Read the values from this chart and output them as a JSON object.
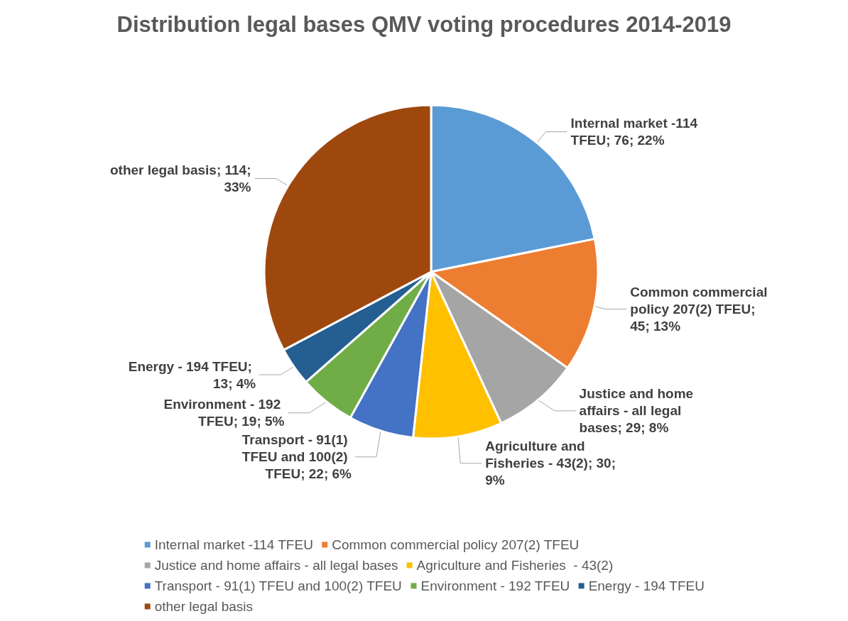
{
  "chart_data": {
    "type": "pie",
    "title": "Distribution legal bases QMV voting procedures 2014-2019",
    "categories": [
      "Internal market -114 TFEU",
      "Common commercial policy 207(2) TFEU",
      "Justice and home affairs - all legal bases",
      "Agriculture and Fisheries  - 43(2)",
      "Transport - 91(1) TFEU and 100(2) TFEU",
      "Environment - 192 TFEU",
      "Energy - 194 TFEU",
      "other legal basis"
    ],
    "values": [
      76,
      45,
      29,
      30,
      22,
      19,
      13,
      114
    ],
    "colors": [
      "#5b9bd5",
      "#ed7d31",
      "#a5a5a5",
      "#ffc000",
      "#4472c4",
      "#70ad47",
      "#255e91",
      "#9e480e"
    ],
    "value_labels": [
      "Internal market -114 TFEU; 76; 22%",
      "Common commercial policy 207(2) TFEU; 45; 13%",
      "Justice and home affairs - all legal bases; 29; 8%",
      "Agriculture and Fisheries - 43(2); 30; 9%",
      "Transport - 91(1) TFEU and 100(2) TFEU; 22; 6%",
      "Environment - 192 TFEU; 19; 5%",
      "Energy - 194 TFEU; 13; 4%",
      "other legal basis; 114; 33%"
    ],
    "legend": "bottom"
  }
}
